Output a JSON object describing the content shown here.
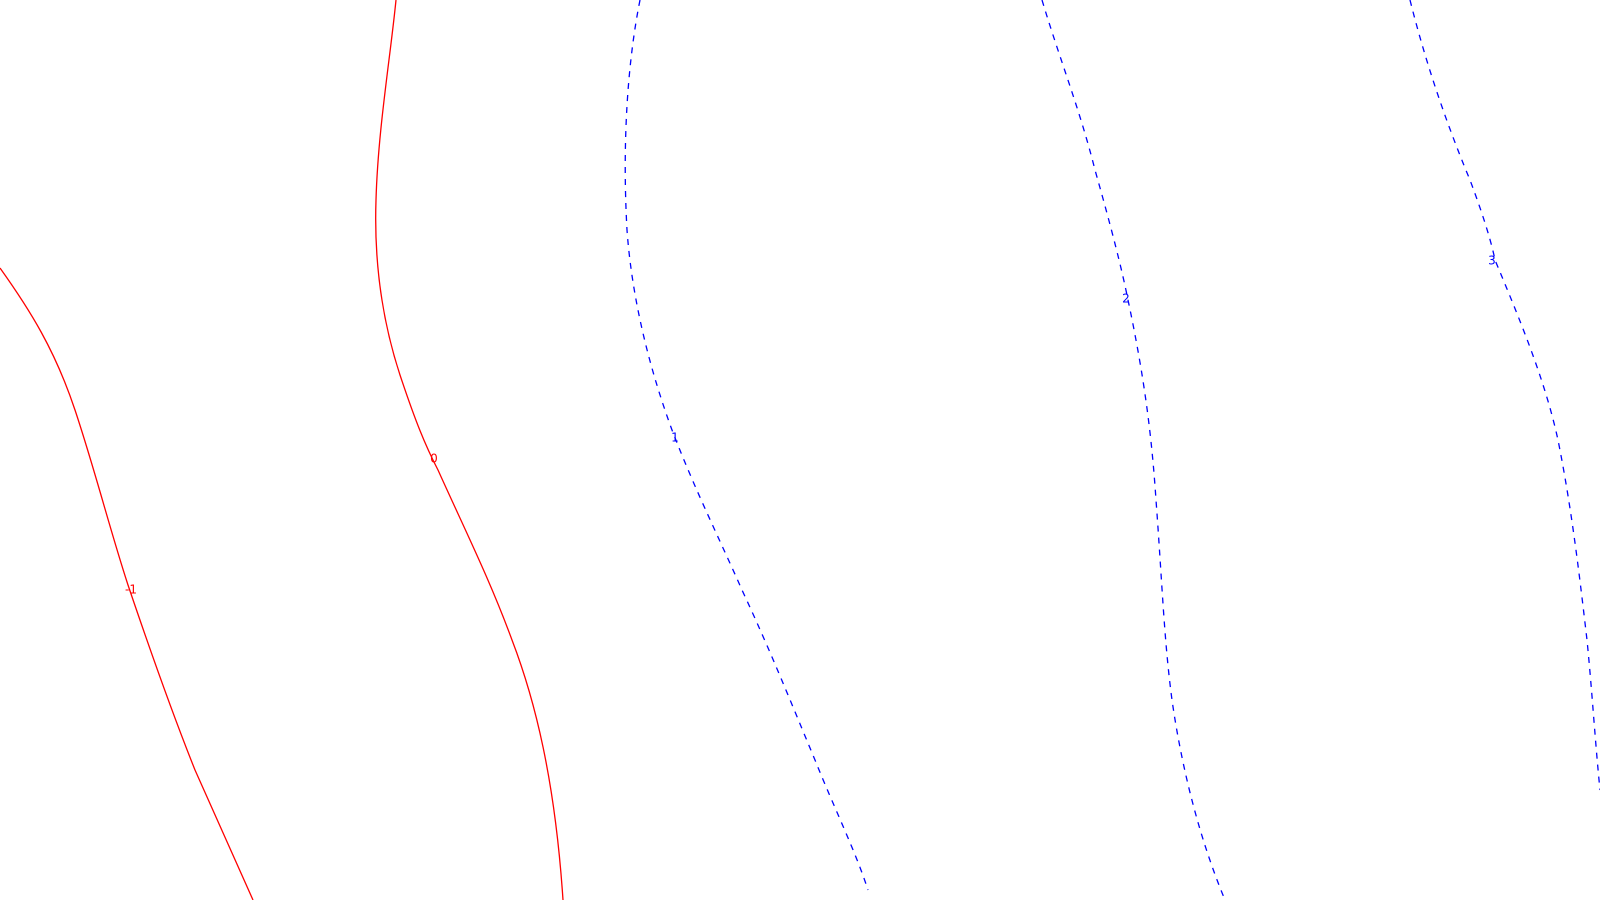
{
  "contours": [
    {
      "id": "contour-neg1",
      "label": "-1",
      "color": "#ff0000",
      "style": "solid"
    },
    {
      "id": "contour-0",
      "label": "0",
      "color": "#ff0000",
      "style": "solid"
    },
    {
      "id": "contour-1",
      "label": "1",
      "color": "#0000ff",
      "style": "dashed"
    },
    {
      "id": "contour-2",
      "label": "2",
      "color": "#0000ff",
      "style": "dashed"
    },
    {
      "id": "contour-3",
      "label": "3",
      "color": "#0000ff",
      "style": "dashed"
    }
  ],
  "colors": {
    "negative_and_zero": "#ff0000",
    "positive": "#0000ff",
    "background": "#ffffff"
  }
}
